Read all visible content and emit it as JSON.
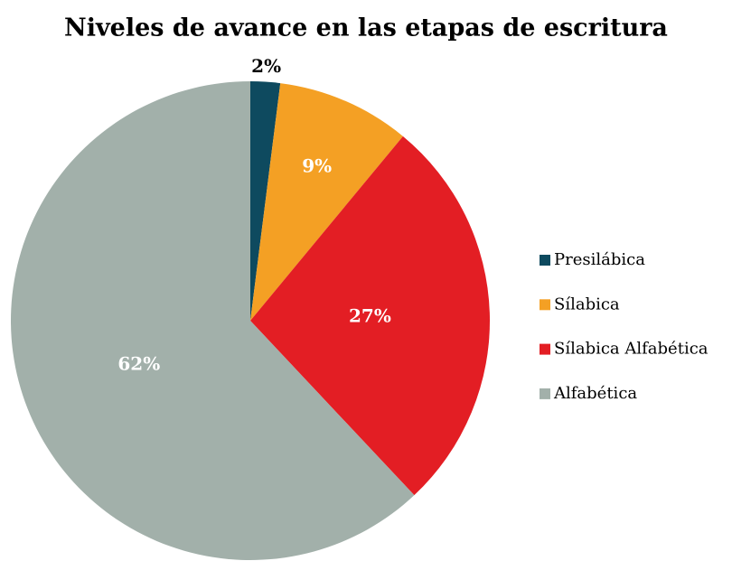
{
  "chart_data": {
    "type": "pie",
    "title": "Niveles de avance en las etapas de escritura",
    "categories": [
      "Presilábica",
      "Sílabica",
      "Sílabica Alfabética",
      "Alfabética"
    ],
    "values": [
      2,
      9,
      27,
      62
    ],
    "value_labels": [
      "2%",
      "9%",
      "27%",
      "62%"
    ],
    "colors": [
      "#0e4a5f",
      "#f4a024",
      "#e31e24",
      "#a2b0aa"
    ],
    "legend": "right"
  }
}
